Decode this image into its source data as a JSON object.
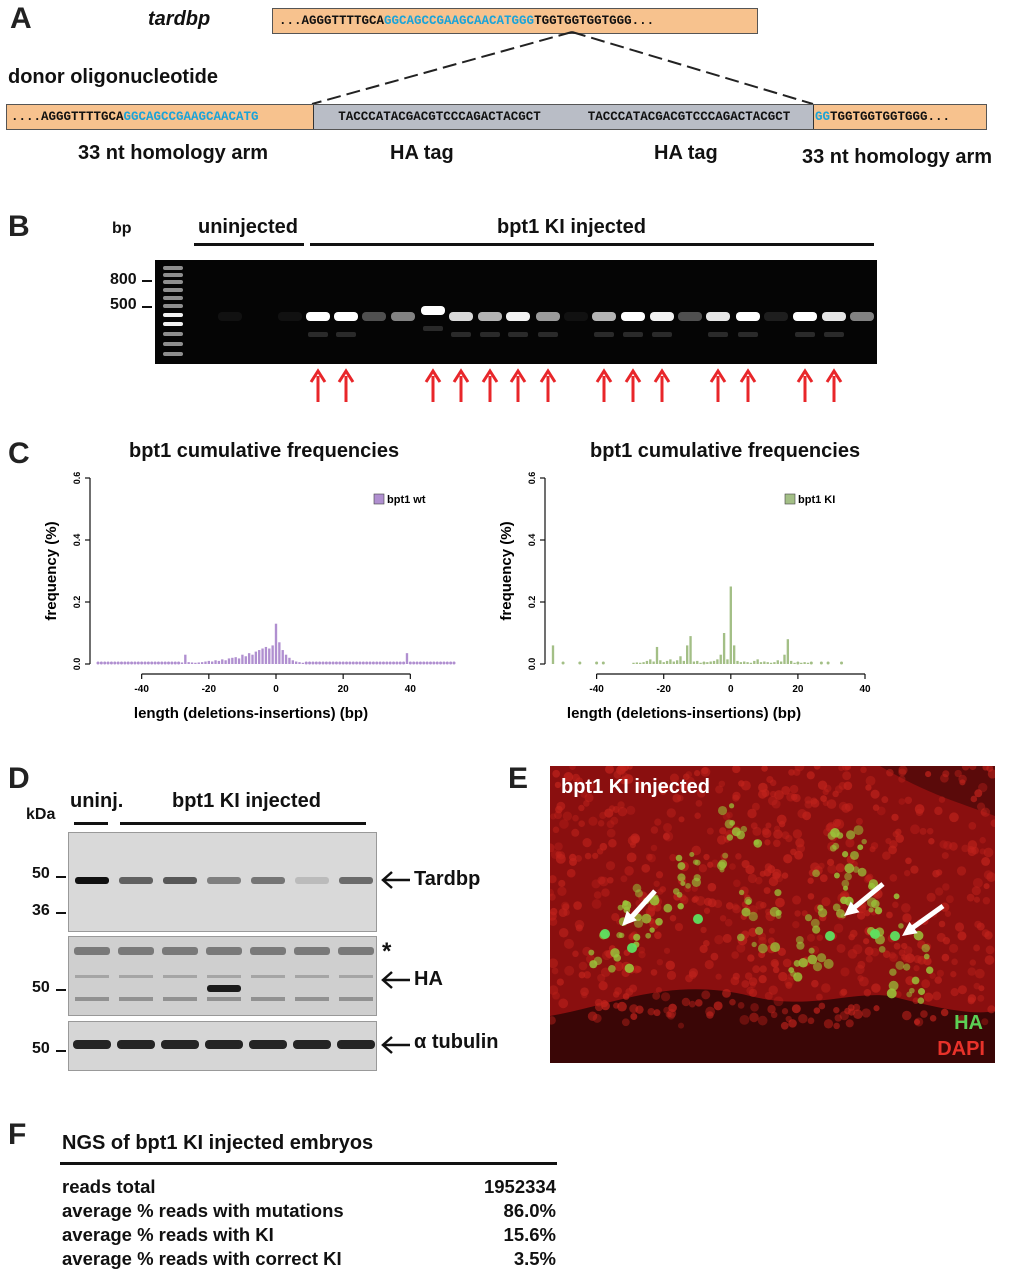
{
  "panelA": {
    "letter": "A",
    "gene": "tardbp",
    "gene_seq": {
      "pre": "...AGGGTTTTGCA",
      "blue": "GGCAGCCGAAGCAACATGGG",
      "post": "TGGTGGTGGTGGG..."
    },
    "donor_label": "donor oligonucleotide",
    "donor_seq": {
      "pre": "....AGGGTTTTGCA",
      "blue": "GGCAGCCGAAGCAACATG",
      "ha1": "TACCCATACGACGTCCCAGACTACGCT",
      "ha2": "TACCCATACGACGTCCCAGACTACGCT",
      "blue2": "GG",
      "post": "TGGTGGTGGTGGG..."
    },
    "arm_left": "33 nt homology arm",
    "ha_tag_1": "HA tag",
    "ha_tag_2": "HA tag",
    "arm_right": "33 nt homology arm"
  },
  "panelB": {
    "letter": "B",
    "bp_label": "bp",
    "marker_800": "800",
    "marker_500": "500",
    "group_uninjected": "uninjected",
    "group_injected": "bpt1 KI injected",
    "lanes": [
      {
        "x": 200,
        "intensity": 0.0
      },
      {
        "x": 230,
        "intensity": 0.05
      },
      {
        "x": 260,
        "intensity": 0.0
      },
      {
        "x": 290,
        "intensity": 0.05
      },
      {
        "x": 318,
        "intensity": 1.0
      },
      {
        "x": 346,
        "intensity": 1.0
      },
      {
        "x": 374,
        "intensity": 0.3
      },
      {
        "x": 403,
        "intensity": 0.5
      },
      {
        "x": 433,
        "intensity": 1.0
      },
      {
        "x": 461,
        "intensity": 0.85
      },
      {
        "x": 490,
        "intensity": 0.7
      },
      {
        "x": 518,
        "intensity": 0.95
      },
      {
        "x": 548,
        "intensity": 0.6
      },
      {
        "x": 576,
        "intensity": 0.05
      },
      {
        "x": 604,
        "intensity": 0.7
      },
      {
        "x": 633,
        "intensity": 1.0
      },
      {
        "x": 662,
        "intensity": 0.95
      },
      {
        "x": 690,
        "intensity": 0.3
      },
      {
        "x": 718,
        "intensity": 0.9
      },
      {
        "x": 748,
        "intensity": 1.0
      },
      {
        "x": 776,
        "intensity": 0.1
      },
      {
        "x": 805,
        "intensity": 1.0
      },
      {
        "x": 834,
        "intensity": 0.9
      },
      {
        "x": 862,
        "intensity": 0.5
      }
    ],
    "arrow_lanes": [
      318,
      346,
      433,
      461,
      490,
      518,
      548,
      604,
      633,
      662,
      718,
      748,
      805,
      834
    ],
    "arrow_color": "#e8262a"
  },
  "panelC": {
    "letter": "C",
    "charts_note": "",
    "wt_color": "#b08fd0",
    "ki_color": "#a3bf86"
  },
  "chart_data": [
    {
      "type": "bar",
      "title": "bpt1 cumulative frequencies",
      "xlabel": "length (deletions-insertions) (bp)",
      "ylabel": "frequency (%)",
      "xlim": [
        -53,
        53
      ],
      "ylim": [
        0,
        0.6
      ],
      "xticks": [
        "-40",
        "-20",
        "0",
        "20",
        "40"
      ],
      "yticks": [
        "0.0",
        "0.2",
        "0.4",
        "0.6"
      ],
      "series": [
        {
          "name": "bpt1 wt",
          "x": [
            -53,
            -52,
            -51,
            -50,
            -49,
            -48,
            -47,
            -46,
            -45,
            -44,
            -43,
            -42,
            -41,
            -40,
            -39,
            -38,
            -37,
            -36,
            -35,
            -34,
            -33,
            -32,
            -31,
            -30,
            -29,
            -28,
            -27,
            -26,
            -25,
            -24,
            -23,
            -22,
            -21,
            -20,
            -19,
            -18,
            -17,
            -16,
            -15,
            -14,
            -13,
            -12,
            -11,
            -10,
            -9,
            -8,
            -7,
            -6,
            -5,
            -4,
            -3,
            -2,
            -1,
            0,
            1,
            2,
            3,
            4,
            5,
            6,
            7,
            8,
            9,
            10,
            11,
            12,
            13,
            14,
            15,
            16,
            17,
            18,
            19,
            20,
            21,
            22,
            23,
            24,
            25,
            26,
            27,
            28,
            29,
            30,
            31,
            32,
            33,
            34,
            35,
            36,
            37,
            38,
            39,
            40,
            41,
            42,
            43,
            44,
            45,
            46,
            47,
            48,
            49,
            50,
            51,
            52,
            53
          ],
          "y": [
            0.002,
            0.002,
            0.002,
            0.002,
            0.002,
            0.002,
            0.002,
            0.002,
            0.002,
            0.002,
            0.002,
            0.002,
            0.002,
            0.002,
            0.002,
            0.002,
            0.002,
            0.002,
            0.002,
            0.002,
            0.002,
            0.002,
            0.002,
            0.002,
            0.002,
            0.005,
            0.03,
            0.006,
            0.005,
            0.004,
            0.005,
            0.006,
            0.008,
            0.01,
            0.008,
            0.012,
            0.01,
            0.015,
            0.012,
            0.018,
            0.02,
            0.022,
            0.018,
            0.03,
            0.025,
            0.035,
            0.03,
            0.04,
            0.045,
            0.05,
            0.055,
            0.05,
            0.06,
            0.13,
            0.07,
            0.045,
            0.03,
            0.02,
            0.012,
            0.008,
            0.006,
            0.004,
            0.003,
            0.003,
            0.003,
            0.002,
            0.002,
            0.002,
            0.002,
            0.002,
            0.002,
            0.002,
            0.002,
            0.002,
            0.002,
            0.002,
            0.002,
            0.002,
            0.002,
            0.002,
            0.002,
            0.002,
            0.002,
            0.002,
            0.002,
            0.002,
            0.002,
            0.002,
            0.002,
            0.002,
            0.002,
            0.002,
            0.035,
            0.002,
            0.002,
            0.002,
            0.002,
            0.002,
            0.002,
            0.002,
            0.002,
            0.002,
            0.002,
            0.002,
            0.002,
            0.002,
            0.002
          ]
        }
      ],
      "legend": "top-right",
      "grid": false
    },
    {
      "type": "bar",
      "title": "bpt1 cumulative frequencies",
      "xlabel": "length (deletions-insertions) (bp)",
      "ylabel": "frequency (%)",
      "xlim": [
        -53,
        40
      ],
      "ylim": [
        0,
        0.6
      ],
      "xticks": [
        "-40",
        "-20",
        "0",
        "20",
        "40"
      ],
      "yticks": [
        "0.0",
        "0.2",
        "0.4",
        "0.6"
      ],
      "series": [
        {
          "name": "bpt1 KI",
          "x": [
            -53,
            -50,
            -45,
            -40,
            -38,
            -29,
            -28,
            -27,
            -26,
            -25,
            -24,
            -23,
            -22,
            -21,
            -20,
            -19,
            -18,
            -17,
            -16,
            -15,
            -14,
            -13,
            -12,
            -11,
            -10,
            -9,
            -8,
            -7,
            -6,
            -5,
            -4,
            -3,
            -2,
            -1,
            0,
            1,
            2,
            3,
            4,
            5,
            6,
            7,
            8,
            9,
            10,
            11,
            12,
            13,
            14,
            15,
            16,
            17,
            18,
            19,
            20,
            21,
            22,
            23,
            24,
            27,
            29,
            33
          ],
          "y": [
            0.06,
            0.002,
            0.002,
            0.002,
            0.002,
            0.004,
            0.005,
            0.004,
            0.006,
            0.01,
            0.015,
            0.008,
            0.055,
            0.012,
            0.006,
            0.01,
            0.015,
            0.008,
            0.012,
            0.025,
            0.01,
            0.06,
            0.09,
            0.008,
            0.01,
            0.004,
            0.002,
            0.006,
            0.008,
            0.01,
            0.015,
            0.03,
            0.1,
            0.015,
            0.25,
            0.06,
            0.01,
            0.006,
            0.008,
            0.006,
            0.004,
            0.01,
            0.015,
            0.006,
            0.008,
            0.006,
            0.004,
            0.006,
            0.012,
            0.008,
            0.03,
            0.08,
            0.01,
            0.004,
            0.002,
            0.004,
            0.006,
            0.004,
            0.002,
            0.002,
            0.002,
            0.002
          ]
        }
      ],
      "legend": "top-right",
      "grid": false
    }
  ],
  "panelD": {
    "letter": "D",
    "kda": "kDa",
    "uninj": "uninj.",
    "injected": "bpt1 KI injected",
    "m50a": "50",
    "m36": "36",
    "m50b": "50",
    "m50c": "50",
    "tardbp": "Tardbp",
    "ha": "HA",
    "tubulin": "α tubulin",
    "star": "*"
  },
  "panelE": {
    "letter": "E",
    "title": "bpt1 KI injected",
    "ha": "HA",
    "dapi": "DAPI",
    "ha_color": "#5ccf55",
    "dapi_color": "#e8322a"
  },
  "panelF": {
    "letter": "F",
    "title": "NGS of bpt1 KI injected embryos",
    "rows": [
      {
        "label": "reads total",
        "value": "1952334"
      },
      {
        "label": "average % reads with mutations",
        "value": "86.0%"
      },
      {
        "label": "average % reads with KI",
        "value": "15.6%"
      },
      {
        "label": "average % reads with correct KI",
        "value": "3.5%"
      }
    ]
  }
}
